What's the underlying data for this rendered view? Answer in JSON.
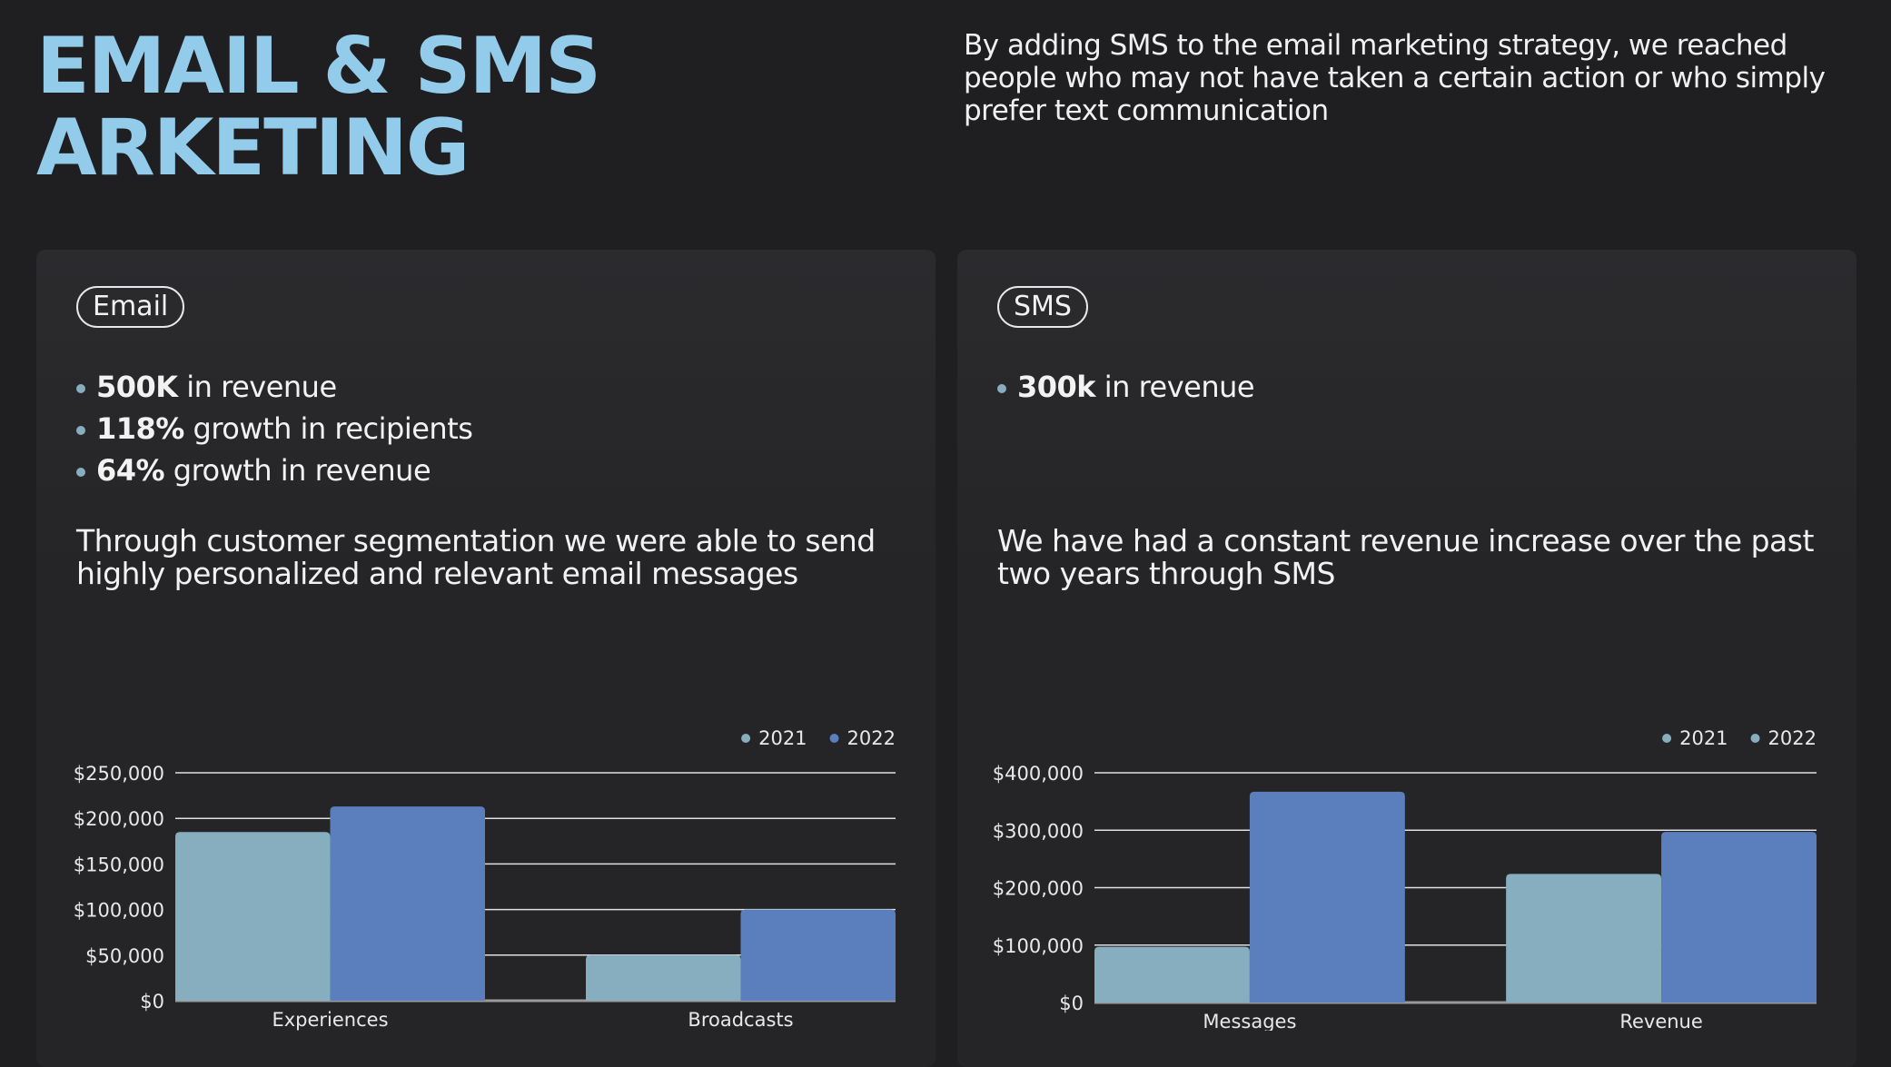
{
  "header": {
    "title_line1": "EMAIL & SMS",
    "title_line2": "ARKETING",
    "intro": "By adding SMS to the email marketing strategy, we reached people who may not have taken a certain action or who simply prefer text communication"
  },
  "colors": {
    "background": "#1f1f21",
    "title": "#93cbea",
    "series_2021": "#86aebf",
    "series_2022": "#5b7fbd"
  },
  "email": {
    "tag": "Email",
    "bullets": [
      {
        "bold": "500K",
        "text": " in revenue"
      },
      {
        "bold": "118%",
        "text": " growth in recipients"
      },
      {
        "bold": "64%",
        "text": " growth in revenue"
      }
    ],
    "description": "Through customer segmentation we were able to send highly personalized and relevant email messages"
  },
  "sms": {
    "tag": "SMS",
    "bullets": [
      {
        "bold": "300k",
        "text": " in revenue"
      }
    ],
    "description": "We have had a constant revenue increase over the past two years through SMS"
  },
  "chart_data": [
    {
      "type": "bar",
      "categories": [
        "Experiences",
        "Broadcasts"
      ],
      "series": [
        {
          "name": "2021",
          "values": [
            185000,
            50000
          ]
        },
        {
          "name": "2022",
          "values": [
            213000,
            100000
          ]
        }
      ],
      "ylim": [
        0,
        250000
      ],
      "yticks": [
        "$0",
        "$50,000",
        "$100,000",
        "$150,000",
        "$200,000",
        "$250,000"
      ],
      "legend_colors": [
        "#86aebf",
        "#5b7fbd"
      ],
      "grid": true,
      "legend": "top-right"
    },
    {
      "type": "bar",
      "categories": [
        "Messages",
        "Revenue"
      ],
      "series": [
        {
          "name": "2021",
          "values": [
            97000,
            224000
          ]
        },
        {
          "name": "2022",
          "values": [
            367000,
            297000
          ]
        }
      ],
      "ylim": [
        0,
        400000
      ],
      "yticks": [
        "$0",
        "$100,000",
        "$200,000",
        "$300,000",
        "$400,000"
      ],
      "legend_colors": [
        "#86aebf",
        "#86aebf"
      ],
      "grid": true,
      "legend": "top-right"
    }
  ]
}
